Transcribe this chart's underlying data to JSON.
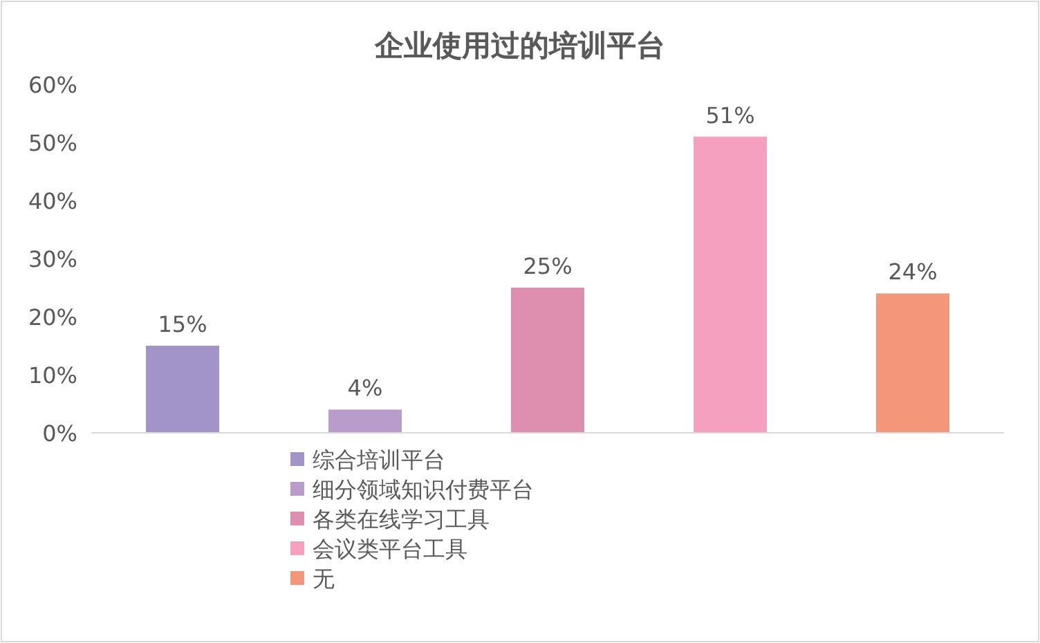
{
  "chart_data": {
    "type": "bar",
    "title": "企业使用过的培训平台",
    "categories": [
      null
    ],
    "series": [
      {
        "name": "综合培训平台",
        "color": "#a294c8",
        "values": [
          15
        ]
      },
      {
        "name": "细分领域知识付费平台",
        "color": "#b99bcc",
        "values": [
          4
        ]
      },
      {
        "name": "各类在线学习工具",
        "color": "#de8fb0",
        "values": [
          25
        ]
      },
      {
        "name": "会议类平台工具",
        "color": "#f5a0bf",
        "values": [
          51
        ]
      },
      {
        "name": "无",
        "color": "#f39679",
        "values": [
          24
        ]
      }
    ],
    "ylim": [
      0,
      60
    ],
    "yticks": [
      {
        "value": 0,
        "label": "0%"
      },
      {
        "value": 10,
        "label": "10%"
      },
      {
        "value": 20,
        "label": "20%"
      },
      {
        "value": 30,
        "label": "30%"
      },
      {
        "value": 40,
        "label": "40%"
      },
      {
        "value": 50,
        "label": "50%"
      },
      {
        "value": 60,
        "label": "60%"
      }
    ],
    "value_labels": [
      "15%",
      "4%",
      "25%",
      "51%",
      "24%"
    ],
    "legend": "bottom"
  }
}
